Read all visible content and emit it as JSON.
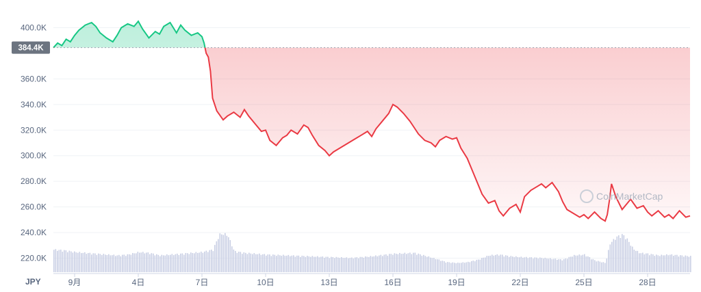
{
  "chart_data": {
    "type": "area",
    "currency_label": "JPY",
    "current_price_label": "384.4K",
    "reference_price": 384400,
    "watermark": "CoinMarketCap",
    "ylim": [
      208000,
      412000
    ],
    "y_ticks": [
      {
        "value": 220000,
        "label": "220.0K"
      },
      {
        "value": 240000,
        "label": "240.0K"
      },
      {
        "value": 260000,
        "label": "260.0K"
      },
      {
        "value": 280000,
        "label": "280.0K"
      },
      {
        "value": 300000,
        "label": "300.0K"
      },
      {
        "value": 320000,
        "label": "320.0K"
      },
      {
        "value": 340000,
        "label": "340.0K"
      },
      {
        "value": 360000,
        "label": "360.0K"
      },
      {
        "value": 400000,
        "label": "400.0K"
      }
    ],
    "xlim": [
      0.0,
      30.0
    ],
    "x_ticks": [
      {
        "value": 1,
        "label": "9月"
      },
      {
        "value": 4,
        "label": "4日"
      },
      {
        "value": 7,
        "label": "7日"
      },
      {
        "value": 10,
        "label": "10日"
      },
      {
        "value": 13,
        "label": "13日"
      },
      {
        "value": 16,
        "label": "16日"
      },
      {
        "value": 19,
        "label": "19日"
      },
      {
        "value": 22,
        "label": "22日"
      },
      {
        "value": 25,
        "label": "25日"
      },
      {
        "value": 28,
        "label": "28日"
      }
    ],
    "up_color": "#16c784",
    "down_color": "#ea3943",
    "price_series": {
      "x": [
        0.0,
        0.2,
        0.4,
        0.6,
        0.8,
        1.0,
        1.2,
        1.5,
        1.8,
        2.0,
        2.2,
        2.5,
        2.8,
        3.0,
        3.2,
        3.5,
        3.8,
        4.0,
        4.2,
        4.5,
        4.8,
        5.0,
        5.2,
        5.5,
        5.8,
        6.0,
        6.2,
        6.5,
        6.8,
        7.0,
        7.1,
        7.2,
        7.3,
        7.4,
        7.5,
        7.7,
        8.0,
        8.2,
        8.5,
        8.8,
        9.0,
        9.2,
        9.5,
        9.8,
        10.0,
        10.2,
        10.5,
        10.8,
        11.0,
        11.2,
        11.5,
        11.8,
        12.0,
        12.2,
        12.5,
        12.8,
        13.0,
        13.2,
        13.5,
        13.8,
        14.0,
        14.2,
        14.5,
        14.8,
        15.0,
        15.2,
        15.5,
        15.8,
        16.0,
        16.2,
        16.5,
        16.8,
        17.0,
        17.2,
        17.5,
        17.8,
        18.0,
        18.2,
        18.5,
        18.8,
        19.0,
        19.2,
        19.5,
        19.8,
        20.0,
        20.2,
        20.5,
        20.8,
        21.0,
        21.2,
        21.5,
        21.8,
        22.0,
        22.2,
        22.5,
        22.8,
        23.0,
        23.2,
        23.5,
        23.8,
        24.0,
        24.2,
        24.5,
        24.8,
        25.0,
        25.2,
        25.5,
        25.8,
        26.0,
        26.1,
        26.2,
        26.3,
        26.5,
        26.8,
        27.0,
        27.2,
        27.5,
        27.8,
        28.0,
        28.2,
        28.5,
        28.8,
        29.0,
        29.2,
        29.5,
        29.8,
        30.0
      ],
      "y": [
        384400,
        388000,
        386000,
        391000,
        389000,
        394000,
        398000,
        402000,
        404000,
        401000,
        396000,
        392000,
        389000,
        394000,
        400000,
        403000,
        401000,
        405000,
        399000,
        392000,
        397000,
        395000,
        401000,
        404000,
        396000,
        402000,
        398000,
        394000,
        396000,
        393000,
        388000,
        380000,
        377000,
        366000,
        345000,
        335000,
        328000,
        331000,
        334000,
        330000,
        336000,
        331000,
        325000,
        319000,
        320000,
        312000,
        308000,
        314000,
        316000,
        320000,
        317000,
        324000,
        322000,
        316000,
        308000,
        304000,
        300000,
        303000,
        306000,
        309000,
        311000,
        313000,
        316000,
        319000,
        315000,
        321000,
        327000,
        333000,
        340000,
        338000,
        333000,
        327000,
        322000,
        317000,
        312000,
        310000,
        307000,
        312000,
        315000,
        313000,
        314000,
        306000,
        298000,
        286000,
        278000,
        270000,
        263000,
        265000,
        257000,
        253000,
        259000,
        262000,
        256000,
        268000,
        273000,
        276000,
        278000,
        275000,
        279000,
        272000,
        264000,
        258000,
        255000,
        252000,
        254000,
        251000,
        256000,
        251000,
        249000,
        254000,
        265000,
        278000,
        268000,
        258000,
        262000,
        266000,
        259000,
        261000,
        256000,
        253000,
        257000,
        252000,
        254000,
        251000,
        257000,
        252000,
        253000
      ]
    },
    "volume_series": {
      "x": [
        0.0,
        0.5,
        1.0,
        1.5,
        2.0,
        2.5,
        3.0,
        3.5,
        4.0,
        4.5,
        5.0,
        5.5,
        6.0,
        6.5,
        7.0,
        7.5,
        7.8,
        8.0,
        8.2,
        8.5,
        9.0,
        9.5,
        10.0,
        11.0,
        12.0,
        13.0,
        14.0,
        15.0,
        16.0,
        17.0,
        18.0,
        18.5,
        19.0,
        19.5,
        20.0,
        20.5,
        21.0,
        21.5,
        22.0,
        23.0,
        24.0,
        24.5,
        25.0,
        25.5,
        26.0,
        26.2,
        26.5,
        26.8,
        27.0,
        27.3,
        27.6,
        28.0,
        28.5,
        29.0,
        29.5,
        30.0
      ],
      "v": [
        27,
        26,
        24,
        23,
        22,
        21,
        20,
        21,
        24,
        23,
        20,
        21,
        22,
        23,
        24,
        27,
        45,
        46,
        44,
        25,
        23,
        22,
        21,
        20,
        19,
        18,
        17,
        19,
        22,
        23,
        16,
        12,
        11,
        12,
        15,
        20,
        21,
        19,
        18,
        17,
        15,
        20,
        21,
        14,
        11,
        34,
        42,
        45,
        40,
        28,
        23,
        22,
        20,
        21,
        20,
        19
      ]
    }
  }
}
